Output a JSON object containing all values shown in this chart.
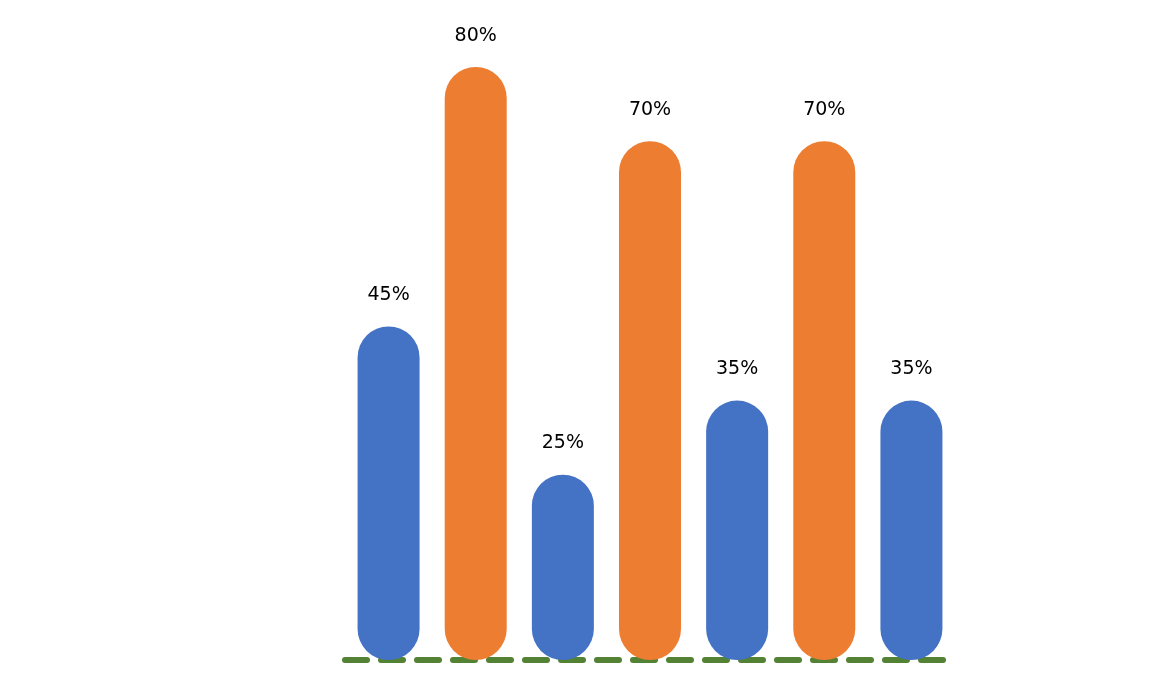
{
  "chart_data": {
    "type": "bar",
    "categories": [
      null,
      null,
      null,
      null,
      null,
      null,
      null
    ],
    "values": [
      45,
      80,
      25,
      70,
      35,
      70,
      35
    ],
    "colors": [
      "#4472c4",
      "#ed7d31",
      "#4472c4",
      "#ed7d31",
      "#4472c4",
      "#ed7d31",
      "#4472c4"
    ],
    "value_labels": [
      "45%",
      "80%",
      "25%",
      "70%",
      "35%",
      "70%",
      "35%"
    ]
  }
}
